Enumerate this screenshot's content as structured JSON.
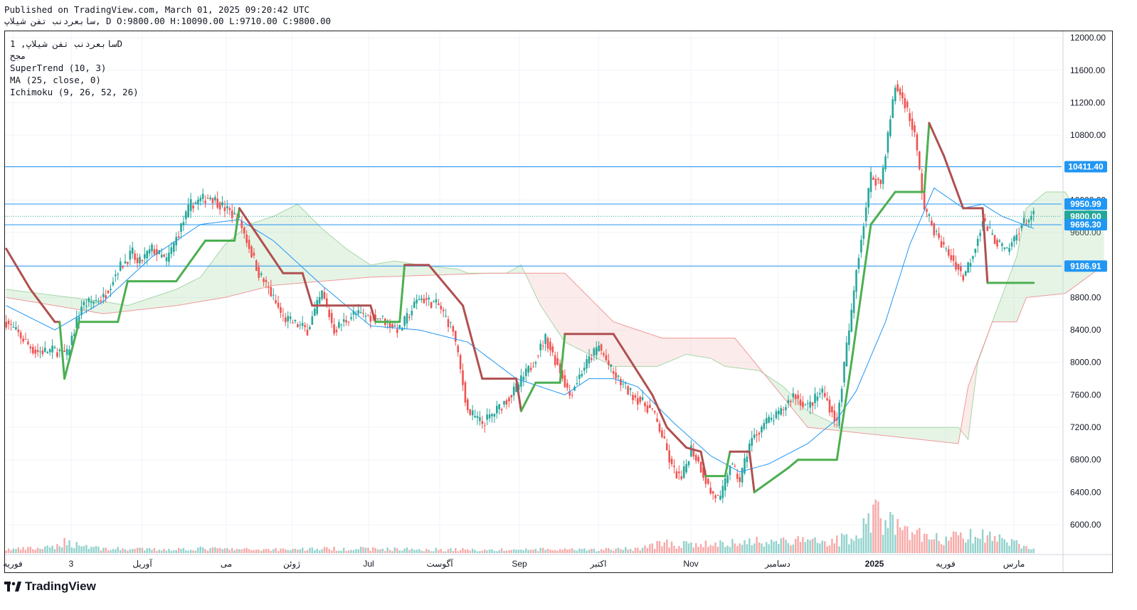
{
  "header": {
    "published": "Published on TradingView.com, March 01, 2025 09:20:42 UTC",
    "ohlc": "سابعردنب تفن شيلاپ, D O:9800.00 H:10090.00 L:9710.00 C:9800.00"
  },
  "legend": {
    "symbol": "سابعردنب تفن شيلاپ, 1D",
    "exchange": "مجح",
    "indicators": [
      "SuperTrend (10, 3)",
      "MA (25, close, 0)",
      "Ichimoku (9, 26, 52, 26)"
    ]
  },
  "logo": {
    "text": "TradingView"
  },
  "colors": {
    "up": "#26a69a",
    "down": "#ef5350",
    "st_up": "#4caf50",
    "st_down": "#b05050",
    "ma": "#2196f3",
    "hline": "#2196f3",
    "last_price": "#26a69a",
    "kumo_up": "#a5d6a7",
    "kumo_down": "#f4c7c3"
  },
  "chart_data": {
    "type": "candlestick",
    "ylim": [
      5650,
      12080
    ],
    "y_ticks": [
      "12000.00",
      "11600.00",
      "11200.00",
      "10800.00",
      "10400.00",
      "10000.00",
      "9600.00",
      "9200.00",
      "8800.00",
      "8400.00",
      "8000.00",
      "7600.00",
      "7200.00",
      "6800.00",
      "6400.00",
      "6000.00"
    ],
    "x_labels": [
      "فوریه",
      "3",
      "آوریل",
      "می",
      "ژوئن",
      "Jul",
      "آگوست",
      "Sep",
      "اکتبر",
      "Nov",
      "دسامبر",
      "2025",
      "فوریه",
      "مارس"
    ],
    "horizontal_lines": [
      10411.4,
      9950.99,
      9696.3,
      9186.91
    ],
    "price_tags": [
      {
        "label": "10411.40",
        "value": 10411.4,
        "color": "#2196f3"
      },
      {
        "label": "9950.99",
        "value": 9950.99,
        "color": "#2196f3"
      },
      {
        "label": "9800.00",
        "value": 9800.0,
        "color": "#26a69a"
      },
      {
        "label": "9696.30",
        "value": 9696.3,
        "color": "#2196f3"
      },
      {
        "label": "9186.91",
        "value": 9186.91,
        "color": "#2196f3"
      }
    ],
    "last_price": 9800.0,
    "close_anchors": [
      [
        0,
        8500
      ],
      [
        12,
        8130
      ],
      [
        20,
        8150
      ],
      [
        25,
        8100
      ],
      [
        31,
        8700
      ],
      [
        40,
        8800
      ],
      [
        46,
        9150
      ],
      [
        52,
        9350
      ],
      [
        54,
        9200
      ],
      [
        60,
        9400
      ],
      [
        66,
        9250
      ],
      [
        76,
        9950
      ],
      [
        84,
        10050
      ],
      [
        96,
        9750
      ],
      [
        104,
        9100
      ],
      [
        108,
        8900
      ],
      [
        114,
        8550
      ],
      [
        124,
        8400
      ],
      [
        130,
        8850
      ],
      [
        135,
        8400
      ],
      [
        143,
        8600
      ],
      [
        154,
        8550
      ],
      [
        162,
        8400
      ],
      [
        170,
        8800
      ],
      [
        178,
        8700
      ],
      [
        184,
        8400
      ],
      [
        190,
        7400
      ],
      [
        196,
        7250
      ],
      [
        200,
        7350
      ],
      [
        208,
        7600
      ],
      [
        216,
        7950
      ],
      [
        222,
        8300
      ],
      [
        228,
        7900
      ],
      [
        232,
        7600
      ],
      [
        238,
        7950
      ],
      [
        244,
        8200
      ],
      [
        250,
        7850
      ],
      [
        256,
        7650
      ],
      [
        262,
        7500
      ],
      [
        266,
        7400
      ],
      [
        270,
        7100
      ],
      [
        274,
        6700
      ],
      [
        278,
        6550
      ],
      [
        282,
        6950
      ],
      [
        286,
        6700
      ],
      [
        290,
        6400
      ],
      [
        294,
        6300
      ],
      [
        298,
        6750
      ],
      [
        302,
        6550
      ],
      [
        306,
        7000
      ],
      [
        312,
        7250
      ],
      [
        318,
        7350
      ],
      [
        324,
        7600
      ],
      [
        330,
        7450
      ],
      [
        336,
        7650
      ],
      [
        342,
        7250
      ],
      [
        346,
        8200
      ],
      [
        348,
        8600
      ],
      [
        350,
        9150
      ],
      [
        356,
        10300
      ],
      [
        360,
        10200
      ],
      [
        362,
        10600
      ],
      [
        366,
        11400
      ],
      [
        370,
        11200
      ],
      [
        374,
        10800
      ],
      [
        378,
        9900
      ],
      [
        384,
        9500
      ],
      [
        390,
        9250
      ],
      [
        394,
        9050
      ],
      [
        398,
        9350
      ],
      [
        402,
        9750
      ],
      [
        406,
        9550
      ],
      [
        412,
        9350
      ],
      [
        418,
        9700
      ],
      [
        422,
        9800
      ]
    ],
    "volume_anchors": [
      [
        0,
        8
      ],
      [
        20,
        12
      ],
      [
        23,
        25
      ],
      [
        40,
        10
      ],
      [
        60,
        8
      ],
      [
        80,
        10
      ],
      [
        100,
        8
      ],
      [
        120,
        9
      ],
      [
        140,
        10
      ],
      [
        160,
        9
      ],
      [
        180,
        8
      ],
      [
        200,
        7
      ],
      [
        220,
        8
      ],
      [
        240,
        7
      ],
      [
        260,
        10
      ],
      [
        270,
        22
      ],
      [
        280,
        18
      ],
      [
        300,
        22
      ],
      [
        310,
        28
      ],
      [
        330,
        26
      ],
      [
        345,
        30
      ],
      [
        350,
        45
      ],
      [
        355,
        80
      ],
      [
        360,
        85
      ],
      [
        366,
        60
      ],
      [
        372,
        50
      ],
      [
        380,
        30
      ],
      [
        400,
        38
      ],
      [
        410,
        30
      ],
      [
        423,
        8
      ]
    ],
    "supertrend_anchors": [
      [
        0,
        9400,
        "d"
      ],
      [
        10,
        8900,
        "d"
      ],
      [
        20,
        8500,
        "d"
      ],
      [
        22,
        8500,
        "u"
      ],
      [
        24,
        7800,
        "u"
      ],
      [
        30,
        8500,
        "u"
      ],
      [
        46,
        8500,
        "u"
      ],
      [
        50,
        9000,
        "u"
      ],
      [
        70,
        9000,
        "u"
      ],
      [
        82,
        9500,
        "u"
      ],
      [
        94,
        9500,
        "u"
      ],
      [
        96,
        9900,
        "d"
      ],
      [
        114,
        9100,
        "d"
      ],
      [
        122,
        9100,
        "d"
      ],
      [
        126,
        8700,
        "d"
      ],
      [
        150,
        8700,
        "d"
      ],
      [
        152,
        8500,
        "u"
      ],
      [
        162,
        8500,
        "u"
      ],
      [
        164,
        9200,
        "d"
      ],
      [
        174,
        9200,
        "d"
      ],
      [
        188,
        8700,
        "d"
      ],
      [
        196,
        7800,
        "d"
      ],
      [
        210,
        7800,
        "d"
      ],
      [
        212,
        7400,
        "u"
      ],
      [
        218,
        7750,
        "u"
      ],
      [
        228,
        7750,
        "u"
      ],
      [
        230,
        8350,
        "d"
      ],
      [
        250,
        8350,
        "d"
      ],
      [
        266,
        7600,
        "d"
      ],
      [
        272,
        7200,
        "d"
      ],
      [
        280,
        6950,
        "d"
      ],
      [
        286,
        6900,
        "d"
      ],
      [
        288,
        6600,
        "u"
      ],
      [
        296,
        6600,
        "u"
      ],
      [
        298,
        6900,
        "d"
      ],
      [
        306,
        6900,
        "d"
      ],
      [
        308,
        6400,
        "u"
      ],
      [
        322,
        6700,
        "u"
      ],
      [
        326,
        6800,
        "u"
      ],
      [
        342,
        6800,
        "u"
      ],
      [
        348,
        8000,
        "u"
      ],
      [
        356,
        9700,
        "u"
      ],
      [
        366,
        10100,
        "u"
      ],
      [
        378,
        10100,
        "u"
      ],
      [
        380,
        10950,
        "d"
      ],
      [
        386,
        10550,
        "d"
      ],
      [
        394,
        9900,
        "d"
      ],
      [
        402,
        9900,
        "d"
      ],
      [
        404,
        8980,
        "u"
      ],
      [
        423,
        8980,
        "u"
      ]
    ],
    "ma_anchors": [
      [
        0,
        8700
      ],
      [
        20,
        8400
      ],
      [
        40,
        8750
      ],
      [
        60,
        9300
      ],
      [
        80,
        9700
      ],
      [
        96,
        9760
      ],
      [
        110,
        9500
      ],
      [
        130,
        8950
      ],
      [
        150,
        8450
      ],
      [
        170,
        8400
      ],
      [
        190,
        8250
      ],
      [
        210,
        7800
      ],
      [
        230,
        7600
      ],
      [
        240,
        7800
      ],
      [
        250,
        7800
      ],
      [
        260,
        7700
      ],
      [
        275,
        7250
      ],
      [
        290,
        6850
      ],
      [
        302,
        6650
      ],
      [
        314,
        6750
      ],
      [
        330,
        7000
      ],
      [
        342,
        7300
      ],
      [
        350,
        7650
      ],
      [
        362,
        8500
      ],
      [
        372,
        9450
      ],
      [
        382,
        10150
      ],
      [
        394,
        9900
      ],
      [
        402,
        9950
      ],
      [
        410,
        9800
      ],
      [
        423,
        9650
      ]
    ],
    "kumo_a_anchors": [
      [
        0,
        8900
      ],
      [
        40,
        8750
      ],
      [
        50,
        8700
      ],
      [
        70,
        8900
      ],
      [
        80,
        9050
      ],
      [
        90,
        9450
      ],
      [
        100,
        9700
      ],
      [
        110,
        9800
      ],
      [
        120,
        9950
      ],
      [
        130,
        9650
      ],
      [
        140,
        9400
      ],
      [
        150,
        9200
      ],
      [
        160,
        9250
      ],
      [
        170,
        9200
      ],
      [
        186,
        9150
      ],
      [
        190,
        9100
      ],
      [
        206,
        9100
      ],
      [
        212,
        9200
      ],
      [
        220,
        8700
      ],
      [
        230,
        8250
      ],
      [
        250,
        7950
      ],
      [
        268,
        7950
      ],
      [
        280,
        8100
      ],
      [
        290,
        8050
      ],
      [
        296,
        7950
      ],
      [
        310,
        7900
      ],
      [
        320,
        7700
      ],
      [
        330,
        7400
      ],
      [
        344,
        7200
      ],
      [
        360,
        7200
      ],
      [
        380,
        7200
      ],
      [
        392,
        7200
      ],
      [
        396,
        7050
      ],
      [
        400,
        8000
      ],
      [
        406,
        8500
      ],
      [
        416,
        9300
      ],
      [
        420,
        9900
      ],
      [
        428,
        10100
      ],
      [
        436,
        10100
      ],
      [
        440,
        9900
      ],
      [
        452,
        9850
      ]
    ],
    "kumo_b_anchors": [
      [
        0,
        8800
      ],
      [
        40,
        8600
      ],
      [
        70,
        8700
      ],
      [
        90,
        8800
      ],
      [
        110,
        8950
      ],
      [
        150,
        9050
      ],
      [
        200,
        9100
      ],
      [
        230,
        9100
      ],
      [
        250,
        8500
      ],
      [
        270,
        8300
      ],
      [
        300,
        8300
      ],
      [
        330,
        7200
      ],
      [
        392,
        7000
      ],
      [
        396,
        7700
      ],
      [
        406,
        8500
      ],
      [
        416,
        8500
      ],
      [
        420,
        8800
      ],
      [
        436,
        8850
      ],
      [
        452,
        9200
      ]
    ]
  }
}
